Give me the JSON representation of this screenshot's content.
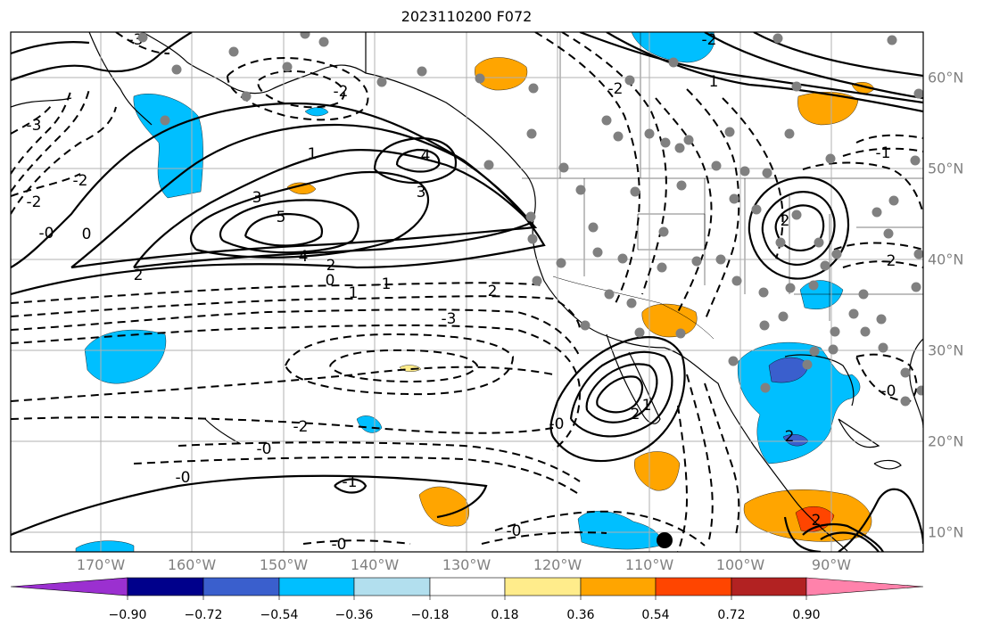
{
  "title": "2023110200 F072",
  "lon_labels": [
    "170°W",
    "160°W",
    "150°W",
    "140°W",
    "130°W",
    "120°W",
    "110°W",
    "100°W",
    "90°W"
  ],
  "lat_labels": [
    "60°N",
    "50°N",
    "40°N",
    "30°N",
    "20°N",
    "10°N"
  ],
  "colorbar": {
    "ticks": [
      "−0.90",
      "−0.72",
      "−0.54",
      "−0.36",
      "−0.18",
      "0.18",
      "0.36",
      "0.54",
      "0.72",
      "0.90"
    ],
    "colors": [
      "#9b30d0",
      "#00008b",
      "#3a5fcd",
      "#00bfff",
      "#b2dfee",
      "#ffffff",
      "#ffec8b",
      "#ffa500",
      "#ff4500",
      "#b22222",
      "#ff82ab"
    ]
  },
  "contour_labels": [
    "5",
    "4",
    "4",
    "3",
    "3",
    "2",
    "2",
    "1",
    "1",
    "0",
    "0",
    "-0",
    "-0",
    "-0",
    "-1",
    "-1",
    "-2",
    "-2",
    "-2",
    "-3",
    "-2",
    "2",
    "2",
    "-2",
    "-0",
    "1",
    "-0",
    "2",
    "2",
    "-0",
    "-2",
    "-3",
    "-2",
    "-1",
    "-0",
    "1",
    "-3",
    "2"
  ],
  "colors": {
    "grid": "#b0b0b0",
    "coast": "#000000",
    "station": "#808080",
    "marker": "#000000"
  }
}
